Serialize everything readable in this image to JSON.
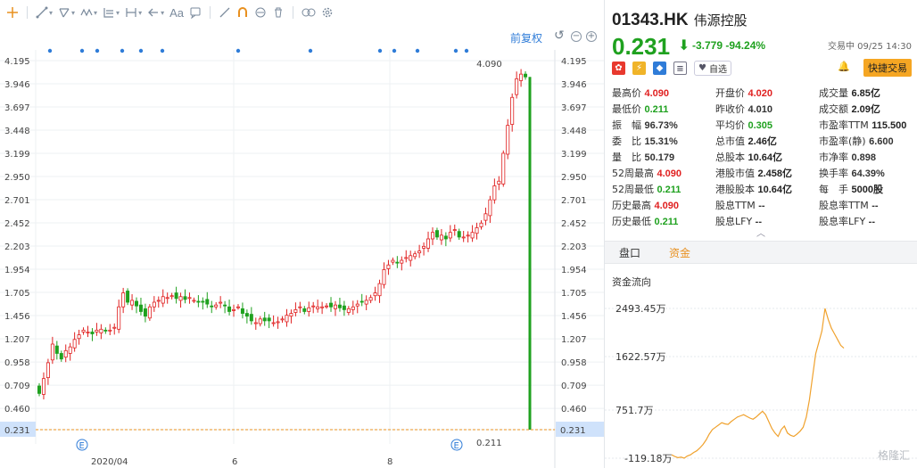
{
  "toolbar": {
    "aa_label": "Aa",
    "icons": [
      "crosshair-icon",
      "line-tool-icon",
      "channel-tool-icon",
      "wave-tool-icon",
      "fib-tool-icon",
      "measure-tool-icon",
      "arrow-tool-icon",
      "text-tool-icon",
      "comment-tool-icon",
      "pen-tool-icon",
      "magnet-icon",
      "lock-icon",
      "trash-icon",
      "link-icon",
      "settings-icon"
    ]
  },
  "chart": {
    "restore_label": "前复权",
    "price_levels": [
      "4.195",
      "3.946",
      "3.697",
      "3.448",
      "3.199",
      "2.950",
      "2.701",
      "2.452",
      "2.203",
      "1.954",
      "1.705",
      "1.456",
      "1.207",
      "0.958",
      "0.709",
      "0.460",
      "0.231"
    ],
    "x_labels": [
      "2020/04",
      "6",
      "8"
    ],
    "high_marker": "4.090",
    "low_marker": "0.211",
    "current_price_tag": "0.231",
    "event_marker": "E"
  },
  "chart_data": {
    "type": "candlestick",
    "ylim": [
      0.23,
      4.3
    ],
    "last_close": 0.231,
    "high": 4.09,
    "low": 0.211,
    "closes": [
      0.62,
      0.78,
      0.95,
      1.15,
      1.05,
      0.99,
      1.08,
      1.12,
      1.2,
      1.25,
      1.3,
      1.28,
      1.26,
      1.3,
      1.31,
      1.29,
      1.3,
      1.33,
      1.55,
      1.7,
      1.6,
      1.62,
      1.56,
      1.5,
      1.45,
      1.55,
      1.6,
      1.62,
      1.66,
      1.65,
      1.67,
      1.64,
      1.66,
      1.63,
      1.65,
      1.62,
      1.6,
      1.6,
      1.58,
      1.55,
      1.57,
      1.6,
      1.56,
      1.5,
      1.52,
      1.55,
      1.48,
      1.45,
      1.4,
      1.38,
      1.42,
      1.4,
      1.4,
      1.38,
      1.39,
      1.42,
      1.46,
      1.48,
      1.52,
      1.55,
      1.5,
      1.54,
      1.56,
      1.55,
      1.55,
      1.56,
      1.55,
      1.57,
      1.54,
      1.52,
      1.53,
      1.55,
      1.58,
      1.6,
      1.62,
      1.65,
      1.7,
      1.8,
      1.95,
      2.0,
      2.05,
      2.02,
      2.05,
      2.08,
      2.1,
      2.12,
      2.15,
      2.2,
      2.28,
      2.35,
      2.3,
      2.32,
      2.28,
      2.35,
      2.38,
      2.3,
      2.3,
      2.32,
      2.35,
      2.4,
      2.45,
      2.55,
      2.7,
      2.85,
      2.9,
      3.2,
      3.5,
      3.8,
      4.0,
      4.05,
      4.02,
      0.231
    ],
    "flow_axis": [
      "2493.45万",
      "1622.57万",
      "751.7万",
      "-119.18万"
    ]
  },
  "quote": {
    "code": "01343.HK",
    "name": "伟源控股",
    "price": "0.231",
    "change": "-3.779",
    "change_pct": "-94.24%",
    "time": "交易中 09/25 14:30",
    "fav_label": "自选",
    "quick_trade_label": "快捷交易"
  },
  "stats": [
    {
      "label": "最高价",
      "value": "4.090",
      "color": "red"
    },
    {
      "label": "开盘价",
      "value": "4.020",
      "color": "red"
    },
    {
      "label": "成交量",
      "value": "6.85亿",
      "color": "black"
    },
    {
      "label": "最低价",
      "value": "0.211",
      "color": "green"
    },
    {
      "label": "昨收价",
      "value": "4.010",
      "color": "plain"
    },
    {
      "label": "成交额",
      "value": "2.09亿",
      "color": "black"
    },
    {
      "label": "振　幅",
      "value": "96.73%",
      "color": "plain"
    },
    {
      "label": "平均价",
      "value": "0.305",
      "color": "green"
    },
    {
      "label": "市盈率TTM",
      "value": "115.500",
      "color": "black"
    },
    {
      "label": "委　比",
      "value": "15.31%",
      "color": "plain"
    },
    {
      "label": "总市值",
      "value": "2.46亿",
      "color": "black"
    },
    {
      "label": "市盈率(静)",
      "value": "6.600",
      "color": "plain"
    },
    {
      "label": "量　比",
      "value": "50.179",
      "color": "plain"
    },
    {
      "label": "总股本",
      "value": "10.64亿",
      "color": "black"
    },
    {
      "label": "市净率",
      "value": "0.898",
      "color": "plain"
    },
    {
      "label": "52周最高",
      "value": "4.090",
      "color": "red"
    },
    {
      "label": "港股市值",
      "value": "2.458亿",
      "color": "black"
    },
    {
      "label": "换手率",
      "value": "64.39%",
      "color": "plain"
    },
    {
      "label": "52周最低",
      "value": "0.211",
      "color": "green"
    },
    {
      "label": "港股股本",
      "value": "10.64亿",
      "color": "black"
    },
    {
      "label": "每　手",
      "value": "5000股",
      "color": "black"
    },
    {
      "label": "历史最高",
      "value": "4.090",
      "color": "red"
    },
    {
      "label": "股息TTM",
      "value": "--",
      "color": "plain"
    },
    {
      "label": "股息率TTM",
      "value": "--",
      "color": "plain"
    },
    {
      "label": "历史最低",
      "value": "0.211",
      "color": "green"
    },
    {
      "label": "股息LFY",
      "value": "--",
      "color": "plain"
    },
    {
      "label": "股息率LFY",
      "value": "--",
      "color": "plain"
    }
  ],
  "tabs": {
    "pankou": "盘口",
    "zijin": "资金"
  },
  "flow": {
    "title": "资金流向"
  },
  "watermark": "格隆汇"
}
